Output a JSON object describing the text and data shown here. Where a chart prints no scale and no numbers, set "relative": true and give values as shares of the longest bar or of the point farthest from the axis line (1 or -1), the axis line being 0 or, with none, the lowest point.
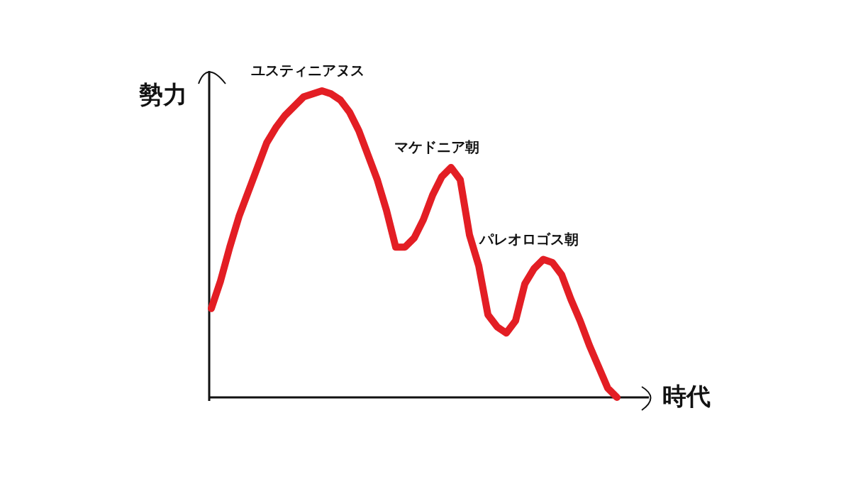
{
  "chart_data": {
    "type": "line",
    "relative": true,
    "xlabel": "時代",
    "ylabel": "勢力",
    "color": "#e31e24",
    "annotations": [
      "ユスティニアヌス",
      "マケドニア朝",
      "パレオロゴス朝"
    ],
    "categories": [
      null,
      null,
      null,
      null,
      null,
      null,
      null,
      null,
      null,
      null,
      null,
      null,
      null,
      null,
      null,
      null,
      null,
      null,
      null,
      null,
      null,
      null,
      null,
      null,
      null,
      null,
      null,
      null,
      null,
      null,
      null,
      null,
      null,
      null,
      null,
      null,
      null,
      null,
      null,
      null,
      null,
      null,
      null,
      null,
      null
    ],
    "values": [
      0.29,
      0.38,
      0.49,
      0.59,
      0.67,
      0.75,
      0.83,
      0.88,
      0.92,
      0.95,
      0.98,
      0.99,
      1,
      0.99,
      0.97,
      0.93,
      0.87,
      0.79,
      0.71,
      0.61,
      0.49,
      0.49,
      0.52,
      0.58,
      0.66,
      0.72,
      0.75,
      0.71,
      0.53,
      0.43,
      0.27,
      0.23,
      0.21,
      0.25,
      0.37,
      0.42,
      0.45,
      0.44,
      0.4,
      0.32,
      0.25,
      0.17,
      0.1,
      0.03,
      0
    ]
  }
}
